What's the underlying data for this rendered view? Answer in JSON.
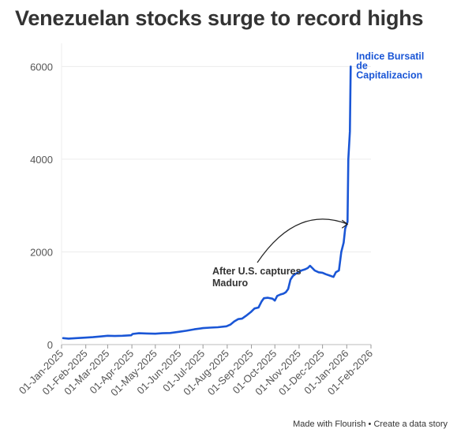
{
  "chart_data": {
    "type": "line",
    "title": "Venezuelan stocks surge to record highs",
    "xlabel": "",
    "ylabel": "",
    "x_range": [
      "2025-01-01",
      "2026-02-01"
    ],
    "ylim": [
      0,
      6500
    ],
    "y_ticks": [
      0,
      2000,
      4000,
      6000
    ],
    "x_tick_labels": [
      "01-Jan-2025",
      "01-Feb-2025",
      "01-Mar-2025",
      "01-Apr-2025",
      "01-May-2025",
      "01-Jun-2025",
      "01-Jul-2025",
      "01-Aug-2025",
      "01-Sep-2025",
      "01-Oct-2025",
      "01-Nov-2025",
      "01-Dec-2025",
      "01-Jan-2026",
      "01-Feb-2026"
    ],
    "grid": "horizontal",
    "series": [
      {
        "name": "Indice Bursatil de Capitalizacion",
        "name_lines": [
          "Indice Bursatil",
          "de",
          "Capitalizacion"
        ],
        "color": "#1a56d6",
        "points": [
          [
            "2025-01-03",
            140
          ],
          [
            "2025-01-10",
            130
          ],
          [
            "2025-01-20",
            140
          ],
          [
            "2025-01-31",
            150
          ],
          [
            "2025-02-10",
            160
          ],
          [
            "2025-02-20",
            175
          ],
          [
            "2025-03-01",
            190
          ],
          [
            "2025-03-10",
            185
          ],
          [
            "2025-03-20",
            190
          ],
          [
            "2025-03-31",
            200
          ],
          [
            "2025-04-02",
            230
          ],
          [
            "2025-04-10",
            245
          ],
          [
            "2025-04-20",
            240
          ],
          [
            "2025-05-01",
            235
          ],
          [
            "2025-05-10",
            245
          ],
          [
            "2025-05-20",
            250
          ],
          [
            "2025-05-31",
            275
          ],
          [
            "2025-06-10",
            300
          ],
          [
            "2025-06-20",
            330
          ],
          [
            "2025-07-01",
            355
          ],
          [
            "2025-07-10",
            365
          ],
          [
            "2025-07-20",
            375
          ],
          [
            "2025-07-31",
            395
          ],
          [
            "2025-08-05",
            430
          ],
          [
            "2025-08-10",
            500
          ],
          [
            "2025-08-15",
            550
          ],
          [
            "2025-08-20",
            560
          ],
          [
            "2025-08-25",
            620
          ],
          [
            "2025-08-31",
            700
          ],
          [
            "2025-09-05",
            780
          ],
          [
            "2025-09-10",
            800
          ],
          [
            "2025-09-14",
            930
          ],
          [
            "2025-09-17",
            1000
          ],
          [
            "2025-09-22",
            1010
          ],
          [
            "2025-09-28",
            990
          ],
          [
            "2025-10-01",
            950
          ],
          [
            "2025-10-04",
            1050
          ],
          [
            "2025-10-08",
            1080
          ],
          [
            "2025-10-12",
            1100
          ],
          [
            "2025-10-15",
            1130
          ],
          [
            "2025-10-18",
            1200
          ],
          [
            "2025-10-21",
            1400
          ],
          [
            "2025-10-24",
            1480
          ],
          [
            "2025-10-27",
            1520
          ],
          [
            "2025-10-31",
            1560
          ],
          [
            "2025-11-04",
            1600
          ],
          [
            "2025-11-08",
            1620
          ],
          [
            "2025-11-12",
            1650
          ],
          [
            "2025-11-15",
            1700
          ],
          [
            "2025-11-18",
            1650
          ],
          [
            "2025-11-21",
            1600
          ],
          [
            "2025-11-26",
            1560
          ],
          [
            "2025-12-01",
            1550
          ],
          [
            "2025-12-05",
            1520
          ],
          [
            "2025-12-10",
            1490
          ],
          [
            "2025-12-15",
            1460
          ],
          [
            "2025-12-18",
            1560
          ],
          [
            "2025-12-22",
            1600
          ],
          [
            "2025-12-25",
            2000
          ],
          [
            "2025-12-28",
            2200
          ],
          [
            "2025-12-30",
            2500
          ],
          [
            "2026-01-02",
            2650
          ],
          [
            "2026-01-03",
            4000
          ],
          [
            "2026-01-05",
            4600
          ],
          [
            "2026-01-06",
            6000
          ]
        ]
      }
    ],
    "annotation": {
      "lines": [
        "After U.S. captures",
        "Maduro"
      ],
      "arrow_to": [
        "2026-01-03",
        2600
      ]
    }
  },
  "footer": {
    "made_with": "Made with Flourish",
    "separator": "•",
    "create": "Create a data story"
  }
}
